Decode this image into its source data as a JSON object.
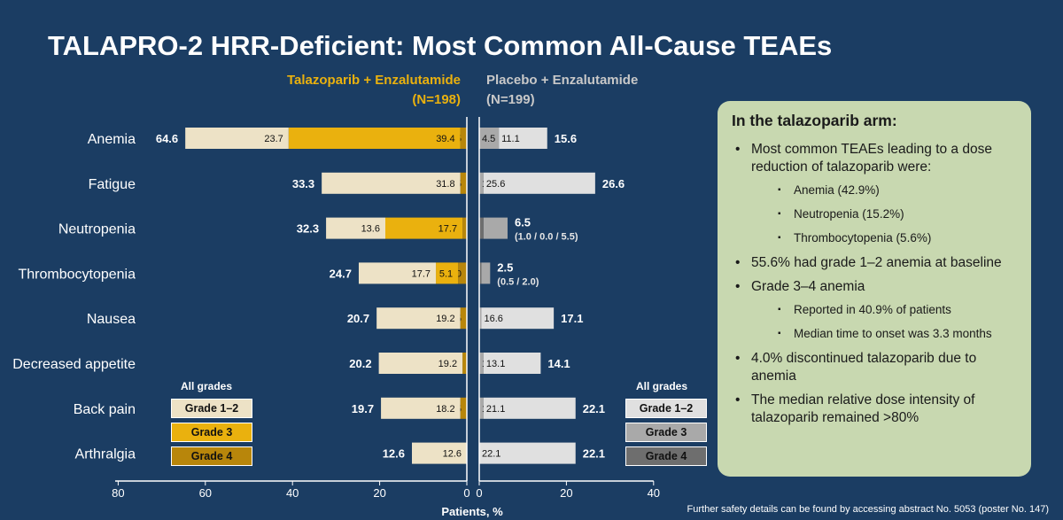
{
  "title": "TALAPRO-2 HRR-Deficient: Most Common All-Cause TEAEs",
  "arm_left": {
    "name": "Talazoparib + Enzalutamide",
    "n": "(N=198)"
  },
  "arm_right": {
    "name": "Placebo + Enzalutamide",
    "n": "(N=199)"
  },
  "colors": {
    "left_grade12": "#ede2c6",
    "left_grade3": "#eab10e",
    "left_grade4": "#b8860b",
    "right_grade12": "#e0e0e0",
    "right_grade3": "#a9a9a9",
    "right_grade4": "#6e6e6e",
    "arm_left_title": "#eab10e",
    "arm_right_title": "#c8c8c8"
  },
  "chart_data": {
    "type": "bar",
    "orientation": "horizontal-butterfly",
    "categories": [
      "Anemia",
      "Fatigue",
      "Neutropenia",
      "Thrombocytopenia",
      "Nausea",
      "Decreased appetite",
      "Back pain",
      "Arthralgia"
    ],
    "xlabel": "Patients, %",
    "xlim_left": [
      80,
      0
    ],
    "xlim_right": [
      0,
      40
    ],
    "xticks_left": [
      "80",
      "60",
      "40",
      "20",
      "0"
    ],
    "xticks_right": [
      "0",
      "20",
      "40"
    ],
    "left": {
      "totals": [
        "64.6",
        "33.3",
        "32.3",
        "24.7",
        "20.7",
        "20.2",
        "19.7",
        "12.6"
      ],
      "series": [
        {
          "name": "Grade 1–2",
          "values": [
            23.7,
            31.8,
            13.6,
            17.7,
            19.2,
            19.2,
            18.2,
            12.6
          ],
          "labels": [
            "23.7",
            "31.8",
            "13.6",
            "17.7",
            "19.2",
            "19.2",
            "18.2",
            "12.6"
          ]
        },
        {
          "name": "Grade 3",
          "values": [
            39.4,
            0,
            17.7,
            5.1,
            0,
            0,
            0,
            0
          ],
          "labels": [
            "39.4",
            "",
            "17.7",
            "5.1",
            "",
            "",
            "",
            ""
          ]
        },
        {
          "name": "Grade 4",
          "values": [
            1.5,
            1.5,
            1.0,
            2.0,
            1.5,
            1.0,
            1.5,
            0
          ],
          "labels": [
            "1.5",
            "1.5",
            "1.0",
            "2.0",
            "1.5",
            "1.0",
            "1.5",
            ""
          ]
        }
      ]
    },
    "right": {
      "totals": [
        "15.6",
        "26.6",
        "6.5",
        "2.5",
        "17.1",
        "14.1",
        "22.1",
        "22.1"
      ],
      "series": [
        {
          "name": "Grade 1–2",
          "values": [
            11.1,
            25.6,
            0,
            0,
            16.6,
            13.1,
            21.1,
            22.1
          ],
          "labels": [
            "11.1",
            "25.6",
            "",
            "",
            "16.6",
            "13.1",
            "21.1",
            "22.1"
          ]
        },
        {
          "name": "Grade 3",
          "values": [
            4.5,
            1.0,
            5.5,
            2.0,
            0.5,
            1.0,
            1.0,
            0
          ],
          "labels": [
            "4.5",
            "1.0",
            "",
            "",
            "0.5",
            "1.0",
            "1.0",
            ""
          ]
        },
        {
          "name": "Grade 4",
          "values": [
            0,
            0,
            1.0,
            0.5,
            0,
            0,
            0,
            0
          ],
          "labels": [
            "",
            "",
            "",
            "",
            "",
            "",
            "",
            ""
          ]
        }
      ],
      "breakdowns": [
        "",
        "",
        "(1.0 / 0.0 / 5.5)",
        "(0.5 / 2.0)",
        "",
        "",
        "",
        ""
      ]
    }
  },
  "legend_left": {
    "title": "All grades",
    "items": [
      "Grade 1–2",
      "Grade 3",
      "Grade 4"
    ]
  },
  "legend_right": {
    "title": "All grades",
    "items": [
      "Grade 1–2",
      "Grade 3",
      "Grade 4"
    ]
  },
  "panel": {
    "title": "In the talazoparib arm:",
    "b1": "Most common TEAEs leading to a dose reduction of talazoparib were:",
    "b1_sub": [
      "Anemia (42.9%)",
      "Neutropenia (15.2%)",
      "Thrombocytopenia (5.6%)"
    ],
    "b2": "55.6% had grade 1–2 anemia at baseline",
    "b3": "Grade 3–4 anemia",
    "b3_sub": [
      "Reported in 40.9% of patients",
      "Median time to onset was 3.3 months"
    ],
    "b4": "4.0% discontinued talazoparib due to anemia",
    "b5": "The median relative dose intensity of talazoparib remained >80%"
  },
  "footnote": "Further safety details can be found by accessing abstract No. 5053 (poster No. 147)"
}
